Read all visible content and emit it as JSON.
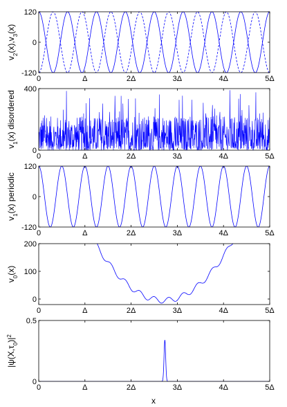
{
  "figure": {
    "xlabel": "x",
    "x_ticks": [
      "0",
      "Δ",
      "2Δ",
      "3Δ",
      "4Δ",
      "5Δ"
    ]
  },
  "chart_data": [
    {
      "type": "line",
      "panel": "v2-v3",
      "ylabel_parts": [
        {
          "t": "v"
        },
        {
          "t": "2",
          "sub": true
        },
        {
          "t": "(x),v"
        },
        {
          "t": "3",
          "sub": true
        },
        {
          "t": "(x)"
        }
      ],
      "xlim": [
        0,
        5
      ],
      "ylim": [
        -120,
        120
      ],
      "y_ticks": [
        -120,
        0,
        120
      ],
      "series": [
        {
          "style": "solid",
          "amplitude": 120,
          "periods_per_delta": 1.6,
          "phase": "cos",
          "color": "#0000ff"
        },
        {
          "style": "dashed",
          "amplitude": 120,
          "periods_per_delta": 1.6,
          "phase": "-cos",
          "color": "#0000ff"
        }
      ]
    },
    {
      "type": "line",
      "panel": "v1-disordered",
      "ylabel_parts": [
        {
          "t": "v"
        },
        {
          "t": "1",
          "sub": true
        },
        {
          "t": "(x) disordered"
        }
      ],
      "xlim": [
        0,
        5
      ],
      "ylim": [
        0,
        400
      ],
      "y_ticks": [
        0,
        400
      ],
      "series": [
        {
          "style": "solid",
          "kind": "random",
          "range": [
            0,
            400
          ],
          "color": "#0000ff"
        }
      ]
    },
    {
      "type": "line",
      "panel": "v1-periodic",
      "ylabel_parts": [
        {
          "t": "v"
        },
        {
          "t": "1",
          "sub": true
        },
        {
          "t": "(x) periodic"
        }
      ],
      "xlim": [
        0,
        5
      ],
      "ylim": [
        -120,
        120
      ],
      "y_ticks": [
        -120,
        0,
        120
      ],
      "series": [
        {
          "style": "solid",
          "amplitude": 120,
          "periods_per_delta": 2,
          "phase": "cos",
          "color": "#0000ff"
        }
      ]
    },
    {
      "type": "line",
      "panel": "v0",
      "ylabel_parts": [
        {
          "t": "v"
        },
        {
          "t": "0",
          "sub": true
        },
        {
          "t": "(x)"
        }
      ],
      "xlim": [
        0,
        5
      ],
      "ylim": [
        -20,
        200
      ],
      "y_ticks": [
        0,
        100,
        200
      ],
      "series": [
        {
          "style": "solid",
          "kind": "well",
          "center": 2.7,
          "curvature": 95,
          "ripple": 10,
          "ripple_periods_per_delta": 3.2,
          "color": "#0000ff"
        }
      ]
    },
    {
      "type": "line",
      "panel": "psi",
      "ylabel_parts": [
        {
          "t": "|ψ(X,τ"
        },
        {
          "t": "0",
          "sub": true
        },
        {
          "t": ")|"
        },
        {
          "t": "2",
          "sup": true
        }
      ],
      "xlim": [
        0,
        5
      ],
      "ylim": [
        0,
        0.5
      ],
      "y_ticks": [
        0,
        0.5
      ],
      "series": [
        {
          "style": "solid",
          "kind": "peak",
          "center": 2.73,
          "height": 0.34,
          "width": 0.025,
          "color": "#0000ff"
        }
      ]
    }
  ]
}
